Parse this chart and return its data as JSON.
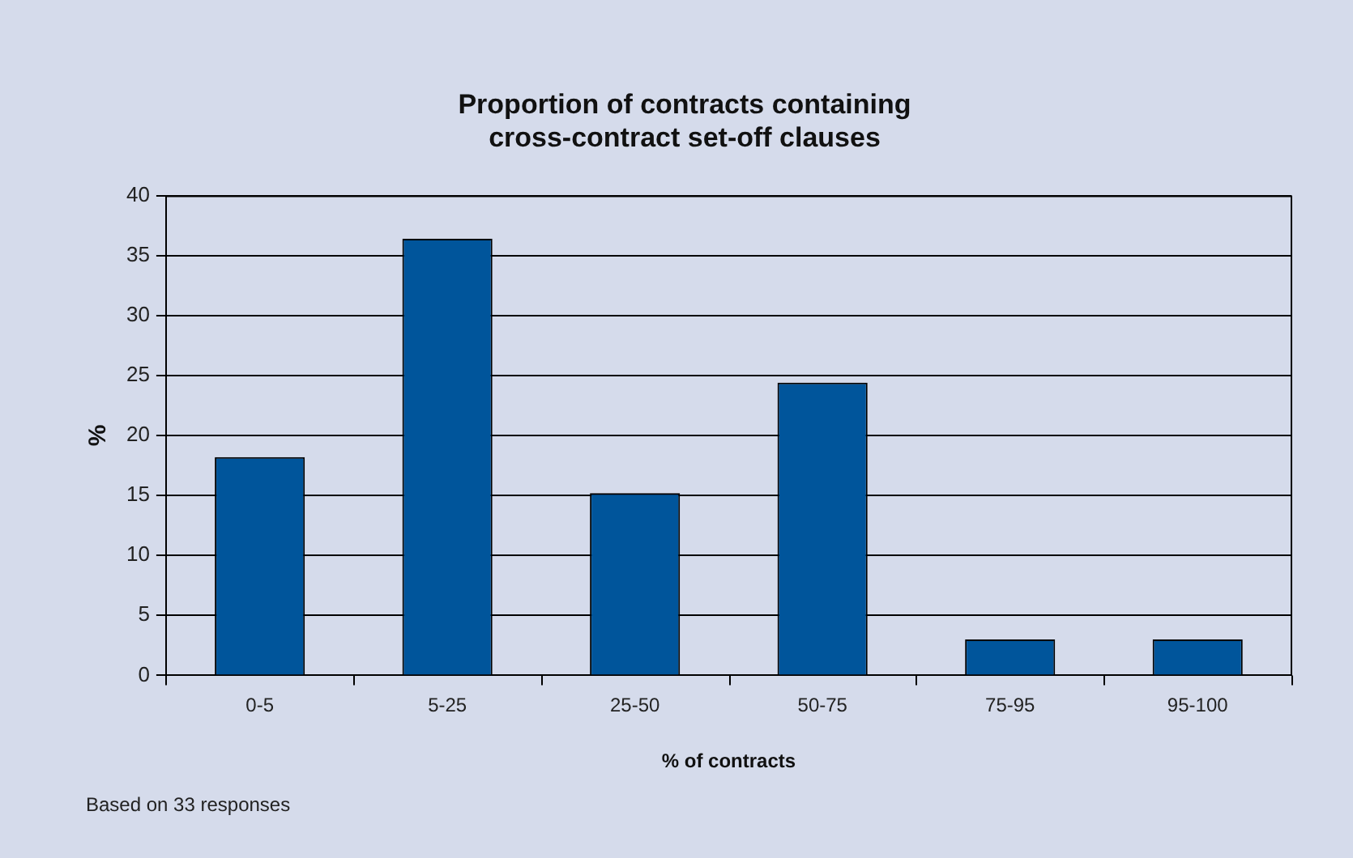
{
  "chart_data": {
    "type": "bar",
    "title": "Proportion of contracts containing cross-contract set-off clauses",
    "xlabel": "% of contracts",
    "ylabel": "%",
    "categories": [
      "0-5",
      "5-25",
      "25-50",
      "50-75",
      "75-95",
      "95-100"
    ],
    "values": [
      18.2,
      36.4,
      15.2,
      24.4,
      3,
      3
    ],
    "color": "#00559b",
    "ylim": [
      0,
      40
    ],
    "yticks": [
      0,
      5,
      10,
      15,
      20,
      25,
      30,
      35,
      40
    ],
    "grid": "y",
    "annotations": [
      "Based on 33 responses"
    ]
  }
}
